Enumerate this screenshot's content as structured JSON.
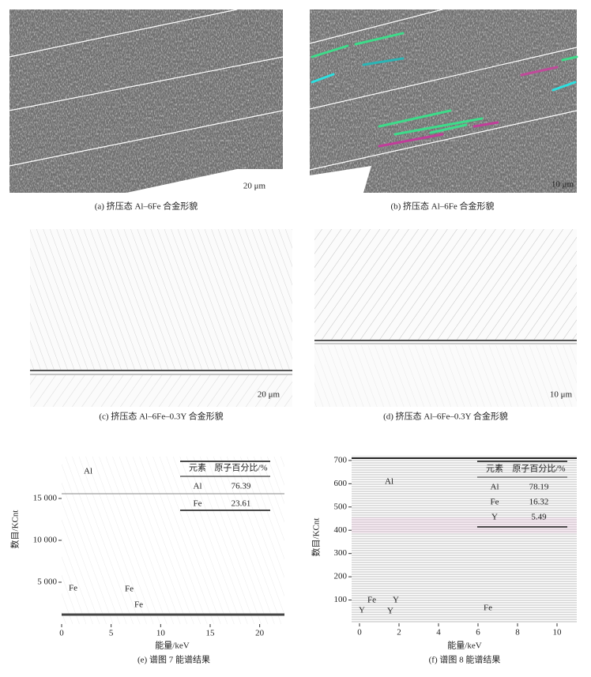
{
  "panels": [
    {
      "scale_bar": "20 μm",
      "caption": "(a) 挤压态 Al–6Fe 合金形貌"
    },
    {
      "scale_bar": "10 μm",
      "caption": "(b) 挤压态 Al–6Fe 合金形貌"
    },
    {
      "scale_bar": "20 μm",
      "caption": "(c) 挤压态 Al–6Fe–0.3Y 合金形貌"
    },
    {
      "scale_bar": "10 μm",
      "caption": "(d) 挤压态 Al–6Fe–0.3Y 合金形貌"
    }
  ],
  "spectra": [
    {
      "caption": "(e) 谱图 7 能谱结果",
      "x_label": "能量/keV",
      "y_label": "数目/KCnt",
      "xlim": [
        0,
        22.5
      ],
      "xticks": [
        0,
        5,
        10,
        15,
        20
      ],
      "ylim": [
        0,
        20000
      ],
      "yticks": [
        {
          "value": 5000,
          "label": "5 000"
        },
        {
          "value": 10000,
          "label": "10 000"
        },
        {
          "value": 15000,
          "label": "15 000"
        }
      ],
      "peak_labels": [
        "Al",
        "Fe",
        "Fe",
        "Fe"
      ],
      "table": {
        "header": [
          "元素",
          "原子百分比/%"
        ],
        "rows": [
          [
            "Al",
            76.39
          ],
          [
            "Fe",
            23.61
          ]
        ]
      }
    },
    {
      "caption": "(f) 谱图 8 能谱结果",
      "x_label": "能量/keV",
      "y_label": "数目/KCnt",
      "xlim": [
        -0.4,
        11
      ],
      "xticks": [
        0,
        2,
        4,
        6,
        8,
        10
      ],
      "ylim": [
        0,
        720
      ],
      "yticks": [
        100,
        200,
        300,
        400,
        500,
        600,
        700
      ],
      "peak_labels": [
        "Al",
        "Fe",
        "Y",
        "Y",
        "Y",
        "Fe"
      ],
      "table": {
        "header": [
          "元素",
          "原子百分比/%"
        ],
        "rows": [
          [
            "Al",
            78.19
          ],
          [
            "Fe",
            16.32
          ],
          [
            "Y",
            5.49
          ]
        ]
      }
    }
  ]
}
